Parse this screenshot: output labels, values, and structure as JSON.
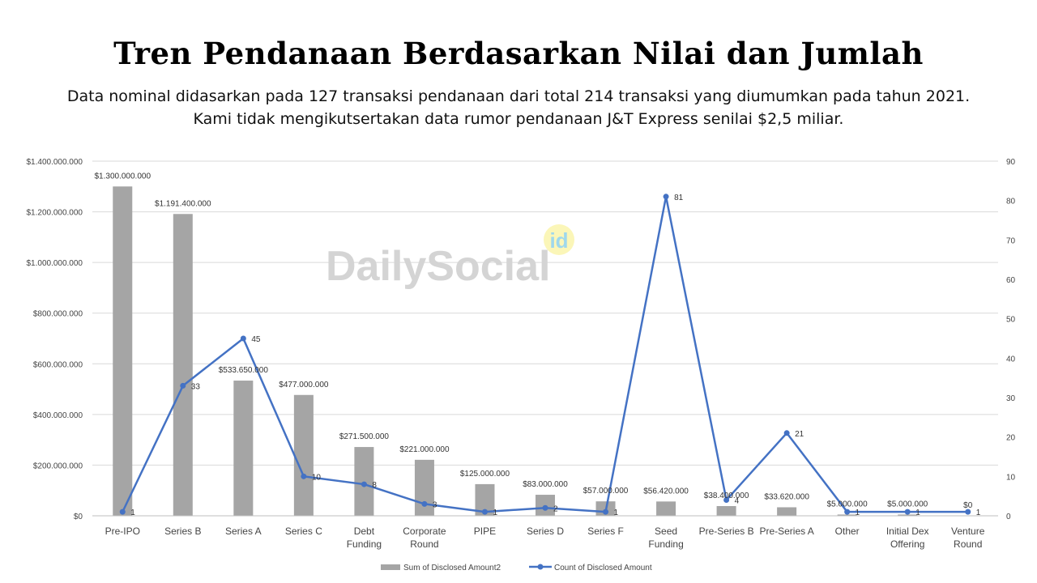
{
  "title": "Tren Pendanaan Berdasarkan Nilai dan Jumlah",
  "subtitle_line1": "Data nominal didasarkan pada 127 transaksi pendanaan dari total 214 transaksi yang diumumkan pada tahun 2021.",
  "subtitle_line2": "Kami tidak mengikutsertakan data rumor pendanaan J&T Express senilai $2,5 miliar.",
  "watermark": "DailySocial",
  "watermark_badge": "id",
  "chart_data": {
    "type": "bar",
    "categories": [
      [
        "Pre-IPO"
      ],
      [
        "Series B"
      ],
      [
        "Series A"
      ],
      [
        "Series C"
      ],
      [
        "Debt",
        "Funding"
      ],
      [
        "Corporate",
        "Round"
      ],
      [
        "PIPE"
      ],
      [
        "Series D"
      ],
      [
        "Series F"
      ],
      [
        "Seed",
        "Funding"
      ],
      [
        "Pre-Series B"
      ],
      [
        "Pre-Series A"
      ],
      [
        "Other"
      ],
      [
        "Initial Dex",
        "Offering"
      ],
      [
        "Venture",
        "Round"
      ]
    ],
    "series": [
      {
        "name": "Sum of Disclosed Amount2",
        "type": "bar",
        "axis": "left",
        "color": "#a5a5a5",
        "values": [
          1300000000,
          1191400000,
          533650000,
          477000000,
          271500000,
          221000000,
          125000000,
          83000000,
          57000000,
          56420000,
          38400000,
          33620000,
          5000000,
          5000000,
          0
        ],
        "labels": [
          "$1.300.000.000",
          "$1.191.400.000",
          "$533.650.000",
          "$477.000.000",
          "$271.500.000",
          "$221.000.000",
          "$125.000.000",
          "$83.000.000",
          "$57.000.000",
          "$56.420.000",
          "$38.400.000",
          "$33.620.000",
          "$5.000.000",
          "$5.000.000",
          "$0"
        ]
      },
      {
        "name": "Count of Disclosed Amount",
        "type": "line",
        "axis": "right",
        "color": "#4472c4",
        "values": [
          1,
          33,
          45,
          10,
          8,
          3,
          1,
          2,
          1,
          81,
          4,
          21,
          1,
          1,
          1
        ],
        "labels": [
          "1",
          "33",
          "45",
          "10",
          "8",
          "3",
          "1",
          "2",
          "1",
          "81",
          "4",
          "21",
          "1",
          "1",
          "1"
        ]
      }
    ],
    "y_left": {
      "ylim": [
        0,
        1400000000
      ],
      "ticks": [
        0,
        200000000,
        400000000,
        600000000,
        800000000,
        1000000000,
        1200000000,
        1400000000
      ],
      "tick_labels": [
        "$0",
        "$200.000.000",
        "$400.000.000",
        "$600.000.000",
        "$800.000.000",
        "$1.000.000.000",
        "$1.200.000.000",
        "$1.400.000.000"
      ]
    },
    "y_right": {
      "ylim": [
        0,
        90
      ],
      "ticks": [
        0,
        10,
        20,
        30,
        40,
        50,
        60,
        70,
        80,
        90
      ],
      "tick_labels": [
        "0",
        "10",
        "20",
        "30",
        "40",
        "50",
        "60",
        "70",
        "80",
        "90"
      ]
    },
    "grid": true,
    "legend_position": "bottom"
  }
}
